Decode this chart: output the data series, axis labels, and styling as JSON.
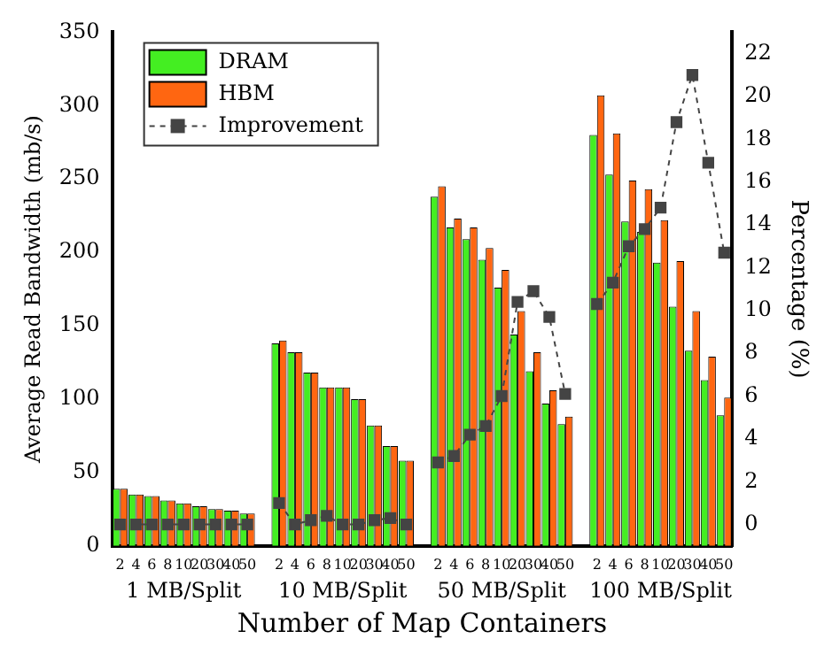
{
  "chart_data": {
    "type": "bar",
    "xlabel": "Number of Map Containers",
    "ylabel": "Average Read Bandwidth (mb/s)",
    "y2label": "Percentage (%)",
    "categories": [
      "2",
      "4",
      "6",
      "8",
      "10",
      "20",
      "30",
      "40",
      "50",
      null,
      "2",
      "4",
      "6",
      "8",
      "10",
      "20",
      "30",
      "40",
      "50",
      null,
      "2",
      "4",
      "6",
      "8",
      "10",
      "20",
      "30",
      "40",
      "50",
      null,
      "2",
      "4",
      "6",
      "8",
      "10",
      "20",
      "30",
      "40",
      "50"
    ],
    "series": [
      {
        "name": "DRAM",
        "color": "#44ee22",
        "values": [
          39,
          35,
          34,
          31,
          29,
          27,
          25,
          24,
          22,
          null,
          138,
          132,
          118,
          108,
          108,
          100,
          82,
          68,
          58,
          null,
          238,
          217,
          209,
          195,
          176,
          144,
          119,
          97,
          83,
          null,
          280,
          253,
          221,
          214,
          193,
          163,
          133,
          113,
          89
        ]
      },
      {
        "name": "HBM",
        "color": "#ff6611",
        "values": [
          39,
          35,
          34,
          31,
          29,
          27,
          25,
          24,
          22,
          null,
          140,
          132,
          118,
          108,
          108,
          100,
          82,
          68,
          58,
          null,
          245,
          223,
          217,
          203,
          188,
          160,
          132,
          106,
          88,
          null,
          307,
          281,
          249,
          243,
          222,
          194,
          160,
          129,
          101
        ]
      },
      {
        "name": "Improvement",
        "type": "line",
        "axis": "y2",
        "color": "#444444",
        "line_style": "dashed",
        "marker": "square",
        "values": [
          0,
          0,
          0,
          0,
          0,
          0,
          0,
          0,
          0,
          null,
          1.0,
          0,
          0.2,
          0.4,
          0,
          0,
          0.2,
          0.3,
          0,
          null,
          2.9,
          3.2,
          4.2,
          4.6,
          6.0,
          10.4,
          10.9,
          9.7,
          6.1,
          null,
          10.3,
          11.3,
          13.0,
          13.8,
          14.8,
          18.8,
          21.0,
          16.9,
          12.7
        ]
      }
    ],
    "ylim": [
      0,
      350
    ],
    "yticks": [
      0,
      50,
      100,
      150,
      200,
      250,
      300,
      350
    ],
    "y2lim": [
      -1,
      23
    ],
    "y2ticks": [
      0,
      2,
      4,
      6,
      8,
      10,
      12,
      14,
      16,
      18,
      20,
      22
    ],
    "legend": "top left",
    "grid": false,
    "annotations": [
      "1 MB/Split",
      "10 MB/Split",
      "50 MB/Split",
      "100 MB/Split"
    ]
  }
}
